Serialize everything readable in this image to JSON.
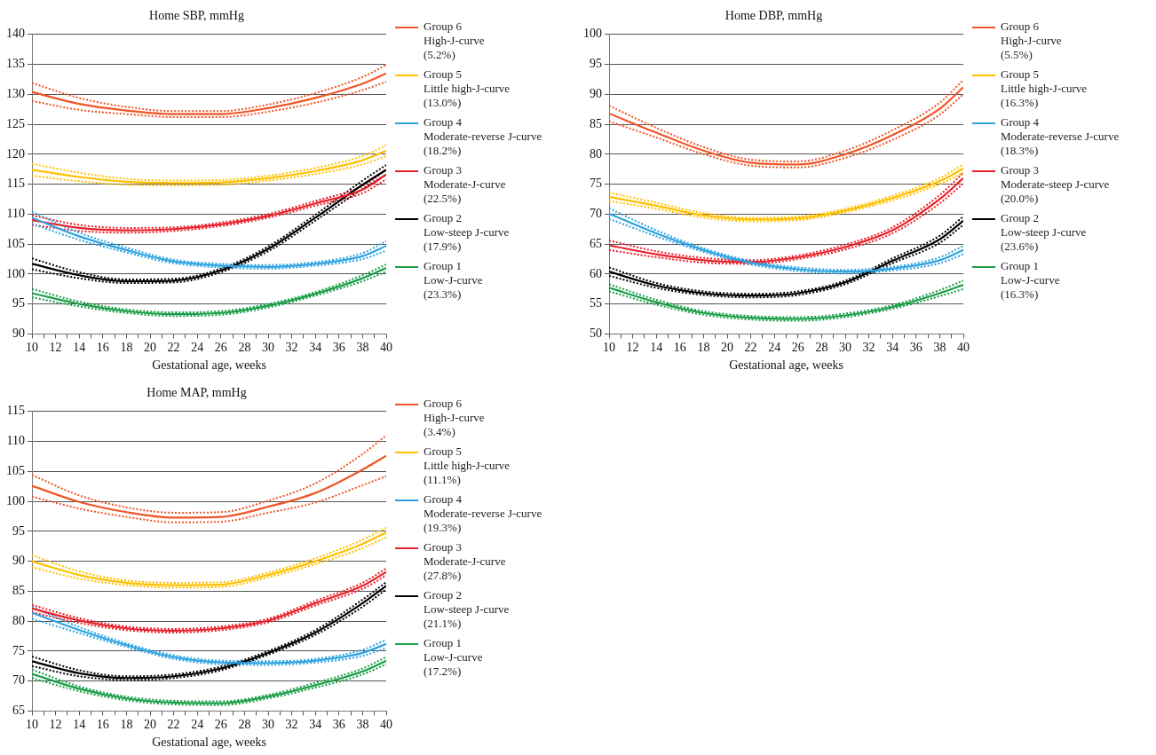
{
  "chart_data": [
    {
      "type": "line",
      "title": "Home SBP, mmHg",
      "xlabel": "Gestational age, weeks",
      "x": [
        10,
        14,
        18,
        22,
        26,
        30,
        34,
        38,
        40
      ],
      "xlim": [
        10,
        40
      ],
      "xticks": [
        10,
        {
          "value": 11,
          "label": null
        },
        12,
        {
          "value": 13,
          "label": null
        },
        14,
        {
          "value": 15,
          "label": null
        },
        16,
        {
          "value": 17,
          "label": null
        },
        18,
        {
          "value": 19,
          "label": null
        },
        20,
        {
          "value": 21,
          "label": null
        },
        22,
        {
          "value": 23,
          "label": null
        },
        24,
        {
          "value": 25,
          "label": null
        },
        26,
        {
          "value": 27,
          "label": null
        },
        28,
        {
          "value": 29,
          "label": null
        },
        30,
        {
          "value": 31,
          "label": null
        },
        32,
        {
          "value": 33,
          "label": null
        },
        34,
        {
          "value": 35,
          "label": null
        },
        36,
        {
          "value": 37,
          "label": null
        },
        38,
        {
          "value": 39,
          "label": null
        },
        40
      ],
      "ylim": [
        90,
        140
      ],
      "yticks": [
        90,
        95,
        100,
        105,
        110,
        115,
        120,
        125,
        130,
        135,
        140
      ],
      "grid": "y",
      "legend": "right",
      "line_style": "solid",
      "series": [
        {
          "name": "Group 6\nHigh-J-curve\n(5.2%)",
          "color": "#ef5527",
          "values": [
            130.4,
            128.4,
            127.3,
            126.7,
            126.7,
            127.7,
            129.4,
            131.8,
            133.5
          ]
        },
        {
          "name": "Group 5\nLittle high-J-curve\n(13.0%)",
          "color": "#ffc000",
          "values": [
            117.4,
            116.2,
            115.4,
            115.2,
            115.3,
            116.0,
            117.2,
            119.0,
            120.6
          ]
        },
        {
          "name": "Group 4\nModerate-reverse J-curve\n(18.2%)",
          "color": "#2fa3e0",
          "values": [
            109.4,
            106.3,
            104.0,
            102.1,
            101.4,
            101.2,
            101.7,
            103.0,
            104.7
          ]
        },
        {
          "name": "Group 3\nModerate-J-curve\n(22.5%)",
          "color": "#e8202a",
          "values": [
            109.0,
            107.7,
            107.3,
            107.5,
            108.3,
            109.7,
            111.8,
            114.1,
            116.6
          ]
        },
        {
          "name": "Group 2\nLow-steep J-curve\n(17.9%)",
          "color": "#000000",
          "values": [
            101.7,
            99.8,
            98.8,
            98.9,
            100.6,
            104.2,
            109.4,
            114.9,
            117.4
          ]
        },
        {
          "name": "Group 1\nLow-J-curve\n(23.3%)",
          "color": "#1a9e47",
          "values": [
            96.8,
            95.0,
            93.8,
            93.3,
            93.5,
            94.7,
            96.7,
            99.3,
            101.0
          ]
        },
        {
          "color": "#ef5527",
          "line_style": "dotted",
          "values": [
            131.9,
            129.4,
            127.9,
            127.2,
            127.2,
            128.3,
            130.2,
            132.9,
            134.9
          ]
        },
        {
          "color": "#ef5527",
          "line_style": "dotted",
          "values": [
            128.9,
            127.4,
            126.7,
            126.2,
            126.2,
            127.1,
            128.6,
            130.7,
            132.1
          ]
        },
        {
          "color": "#ffc000",
          "line_style": "dotted",
          "values": [
            118.4,
            116.9,
            115.9,
            115.6,
            115.7,
            116.4,
            117.7,
            119.7,
            121.5
          ]
        },
        {
          "color": "#ffc000",
          "line_style": "dotted",
          "values": [
            116.4,
            115.5,
            114.9,
            114.8,
            114.9,
            115.6,
            116.7,
            118.3,
            119.7
          ]
        },
        {
          "color": "#2fa3e0",
          "line_style": "dotted",
          "values": [
            110.4,
            106.9,
            104.4,
            102.4,
            101.7,
            101.5,
            102.0,
            103.5,
            105.5
          ]
        },
        {
          "color": "#2fa3e0",
          "line_style": "dotted",
          "values": [
            108.4,
            105.7,
            103.6,
            101.8,
            101.1,
            100.9,
            101.4,
            102.5,
            103.9
          ]
        },
        {
          "color": "#e8202a",
          "line_style": "dotted",
          "values": [
            109.8,
            108.2,
            107.7,
            107.8,
            108.6,
            110.0,
            112.2,
            114.7,
            117.4
          ]
        },
        {
          "color": "#e8202a",
          "line_style": "dotted",
          "values": [
            108.2,
            107.2,
            106.9,
            107.2,
            108.0,
            109.4,
            111.4,
            113.5,
            115.8
          ]
        },
        {
          "color": "#000000",
          "line_style": "dotted",
          "values": [
            102.6,
            100.3,
            99.1,
            99.2,
            100.9,
            104.6,
            109.9,
            115.6,
            118.2
          ]
        },
        {
          "color": "#000000",
          "line_style": "dotted",
          "values": [
            100.8,
            99.3,
            98.5,
            98.6,
            100.3,
            103.8,
            108.9,
            114.2,
            116.6
          ]
        },
        {
          "color": "#1a9e47",
          "line_style": "dotted",
          "values": [
            97.5,
            95.4,
            94.1,
            93.6,
            93.8,
            95.0,
            97.0,
            99.8,
            101.6
          ]
        },
        {
          "color": "#1a9e47",
          "line_style": "dotted",
          "values": [
            96.1,
            94.6,
            93.5,
            93.0,
            93.2,
            94.4,
            96.4,
            98.8,
            100.4
          ]
        }
      ]
    },
    {
      "type": "line",
      "title": "Home DBP, mmHg",
      "xlabel": "Gestational age, weeks",
      "x": [
        10,
        14,
        18,
        22,
        26,
        30,
        34,
        38,
        40
      ],
      "xlim": [
        10,
        40
      ],
      "xticks": [
        10,
        {
          "value": 11,
          "label": null
        },
        12,
        {
          "value": 13,
          "label": null
        },
        14,
        {
          "value": 15,
          "label": null
        },
        16,
        {
          "value": 17,
          "label": null
        },
        18,
        {
          "value": 19,
          "label": null
        },
        20,
        {
          "value": 21,
          "label": null
        },
        22,
        {
          "value": 23,
          "label": null
        },
        24,
        {
          "value": 25,
          "label": null
        },
        26,
        {
          "value": 27,
          "label": null
        },
        28,
        {
          "value": 29,
          "label": null
        },
        30,
        {
          "value": 31,
          "label": null
        },
        32,
        {
          "value": 33,
          "label": null
        },
        34,
        {
          "value": 35,
          "label": null
        },
        36,
        {
          "value": 37,
          "label": null
        },
        38,
        {
          "value": 39,
          "label": null
        },
        40
      ],
      "ylim": [
        50,
        100
      ],
      "yticks": [
        50,
        55,
        60,
        65,
        70,
        75,
        80,
        85,
        90,
        95,
        100
      ],
      "grid": "y",
      "legend": "right",
      "line_style": "solid",
      "series": [
        {
          "name": "Group 6\nHigh-J-curve\n(5.5%)",
          "color": "#ef5527",
          "values": [
            86.8,
            83.6,
            80.6,
            78.6,
            78.3,
            80.0,
            83.2,
            87.6,
            91.2
          ]
        },
        {
          "name": "Group 5\nLittle high-J-curve\n(16.3%)",
          "color": "#ffc000",
          "values": [
            72.9,
            71.4,
            69.8,
            69.1,
            69.3,
            70.6,
            72.7,
            75.5,
            77.6
          ]
        },
        {
          "name": "Group 4\nModerate-reverse J-curve\n(18.3%)",
          "color": "#2fa3e0",
          "values": [
            70.1,
            66.8,
            64.0,
            61.9,
            60.8,
            60.4,
            60.9,
            62.3,
            64.0
          ]
        },
        {
          "name": "Group 3\nModerate-steep J-curve\n(20.0%)",
          "color": "#e8202a",
          "values": [
            64.8,
            63.3,
            62.3,
            62.0,
            62.8,
            64.5,
            67.3,
            72.5,
            76.0
          ]
        },
        {
          "name": "Group 2\nLow-steep J-curve\n(23.6%)",
          "color": "#000000",
          "values": [
            60.4,
            58.1,
            56.8,
            56.4,
            56.8,
            58.6,
            62.2,
            65.8,
            68.9
          ]
        },
        {
          "name": "Group 1\nLow-J-curve\n(16.3%)",
          "color": "#1a9e47",
          "values": [
            57.7,
            55.3,
            53.5,
            52.7,
            52.5,
            53.1,
            54.5,
            56.8,
            58.2
          ]
        },
        {
          "color": "#ef5527",
          "line_style": "dotted",
          "values": [
            88.1,
            84.4,
            81.2,
            79.1,
            78.8,
            80.6,
            84.0,
            88.6,
            92.4
          ]
        },
        {
          "color": "#ef5527",
          "line_style": "dotted",
          "values": [
            85.5,
            82.8,
            80.0,
            78.1,
            77.8,
            79.4,
            82.4,
            86.6,
            90.0
          ]
        },
        {
          "color": "#ffc000",
          "line_style": "dotted",
          "values": [
            73.6,
            71.9,
            70.2,
            69.4,
            69.6,
            70.9,
            73.1,
            76.0,
            78.3
          ]
        },
        {
          "color": "#ffc000",
          "line_style": "dotted",
          "values": [
            72.2,
            70.9,
            69.4,
            68.8,
            69.0,
            70.3,
            72.3,
            75.0,
            76.9
          ]
        },
        {
          "color": "#2fa3e0",
          "line_style": "dotted",
          "values": [
            71.0,
            67.3,
            64.3,
            62.2,
            61.1,
            60.7,
            61.2,
            62.8,
            64.7
          ]
        },
        {
          "color": "#2fa3e0",
          "line_style": "dotted",
          "values": [
            69.2,
            66.3,
            63.7,
            61.6,
            60.5,
            60.1,
            60.6,
            61.8,
            63.3
          ]
        },
        {
          "color": "#e8202a",
          "line_style": "dotted",
          "values": [
            65.6,
            63.8,
            62.7,
            62.3,
            63.1,
            64.9,
            67.8,
            73.2,
            76.9
          ]
        },
        {
          "color": "#e8202a",
          "line_style": "dotted",
          "values": [
            64.0,
            62.8,
            61.9,
            61.7,
            62.5,
            64.1,
            66.8,
            71.8,
            75.1
          ]
        },
        {
          "color": "#000000",
          "line_style": "dotted",
          "values": [
            61.1,
            58.5,
            57.1,
            56.7,
            57.1,
            58.9,
            62.6,
            66.4,
            69.6
          ]
        },
        {
          "color": "#000000",
          "line_style": "dotted",
          "values": [
            59.7,
            57.7,
            56.5,
            56.1,
            56.5,
            58.3,
            61.8,
            65.2,
            68.2
          ]
        },
        {
          "color": "#1a9e47",
          "line_style": "dotted",
          "values": [
            58.3,
            55.7,
            53.8,
            53.0,
            52.8,
            53.4,
            54.8,
            57.3,
            58.9
          ]
        },
        {
          "color": "#1a9e47",
          "line_style": "dotted",
          "values": [
            57.1,
            54.9,
            53.2,
            52.4,
            52.2,
            52.8,
            54.2,
            56.3,
            57.5
          ]
        }
      ]
    },
    {
      "type": "line",
      "title": "Home MAP, mmHg",
      "xlabel": "Gestational age, weeks",
      "x": [
        10,
        14,
        18,
        22,
        26,
        30,
        34,
        38,
        40
      ],
      "xlim": [
        10,
        40
      ],
      "xticks": [
        10,
        {
          "value": 11,
          "label": null
        },
        12,
        {
          "value": 13,
          "label": null
        },
        14,
        {
          "value": 15,
          "label": null
        },
        16,
        {
          "value": 17,
          "label": null
        },
        18,
        {
          "value": 19,
          "label": null
        },
        20,
        {
          "value": 21,
          "label": null
        },
        22,
        {
          "value": 23,
          "label": null
        },
        24,
        {
          "value": 25,
          "label": null
        },
        26,
        {
          "value": 27,
          "label": null
        },
        28,
        {
          "value": 29,
          "label": null
        },
        30,
        {
          "value": 31,
          "label": null
        },
        32,
        {
          "value": 33,
          "label": null
        },
        34,
        {
          "value": 35,
          "label": null
        },
        36,
        {
          "value": 37,
          "label": null
        },
        38,
        {
          "value": 39,
          "label": null
        },
        40
      ],
      "ylim": [
        65,
        115
      ],
      "yticks": [
        65,
        70,
        75,
        80,
        85,
        90,
        95,
        100,
        105,
        110,
        115
      ],
      "grid": "y",
      "legend": "right",
      "line_style": "solid",
      "series": [
        {
          "name": "Group 6\nHigh-J-curve\n(3.4%)",
          "color": "#ef5527",
          "values": [
            102.6,
            99.9,
            98.2,
            97.3,
            97.4,
            99.1,
            101.4,
            105.3,
            107.6
          ]
        },
        {
          "name": "Group 5\nLittle high-J-curve\n(11.1%)",
          "color": "#ffc000",
          "values": [
            90.0,
            87.7,
            86.4,
            86.0,
            86.1,
            87.7,
            90.0,
            92.9,
            94.8
          ]
        },
        {
          "name": "Group 4\nModerate-reverse J-curve\n(19.3%)",
          "color": "#2fa3e0",
          "values": [
            81.4,
            78.5,
            76.0,
            74.0,
            73.1,
            73.0,
            73.4,
            74.7,
            76.2
          ]
        },
        {
          "name": "Group 3\nModerate-J-curve\n(27.8%)",
          "color": "#e8202a",
          "values": [
            82.1,
            80.1,
            78.8,
            78.4,
            78.8,
            80.1,
            83.0,
            85.9,
            88.2
          ]
        },
        {
          "name": "Group 2\nLow-steep J-curve\n(21.1%)",
          "color": "#000000",
          "values": [
            73.3,
            71.3,
            70.5,
            70.8,
            72.1,
            74.7,
            78.1,
            83.0,
            85.9
          ]
        },
        {
          "name": "Group 1\nLow-J-curve\n(17.2%)",
          "color": "#1a9e47",
          "values": [
            71.2,
            68.7,
            67.1,
            66.4,
            66.3,
            67.4,
            69.3,
            71.6,
            73.4
          ]
        },
        {
          "color": "#ef5527",
          "line_style": "dotted",
          "values": [
            104.4,
            101.0,
            99.0,
            98.1,
            98.2,
            100.1,
            103.0,
            107.9,
            111.0
          ]
        },
        {
          "color": "#ef5527",
          "line_style": "dotted",
          "values": [
            100.8,
            98.8,
            97.4,
            96.5,
            96.6,
            98.1,
            99.8,
            102.7,
            104.2
          ]
        },
        {
          "color": "#ffc000",
          "line_style": "dotted",
          "values": [
            91.0,
            88.3,
            86.8,
            86.4,
            86.5,
            88.1,
            90.5,
            93.6,
            95.6
          ]
        },
        {
          "color": "#ffc000",
          "line_style": "dotted",
          "values": [
            89.0,
            87.1,
            86.0,
            85.6,
            85.7,
            87.3,
            89.5,
            92.2,
            94.0
          ]
        },
        {
          "color": "#2fa3e0",
          "line_style": "dotted",
          "values": [
            82.4,
            79.0,
            76.3,
            74.3,
            73.4,
            73.3,
            73.7,
            75.2,
            76.9
          ]
        },
        {
          "color": "#2fa3e0",
          "line_style": "dotted",
          "values": [
            80.4,
            78.0,
            75.7,
            73.7,
            72.8,
            72.7,
            73.1,
            74.2,
            75.5
          ]
        },
        {
          "color": "#e8202a",
          "line_style": "dotted",
          "values": [
            82.7,
            80.5,
            79.1,
            78.7,
            79.1,
            80.4,
            83.4,
            86.4,
            88.8
          ]
        },
        {
          "color": "#e8202a",
          "line_style": "dotted",
          "values": [
            81.5,
            79.7,
            78.5,
            78.1,
            78.5,
            79.8,
            82.6,
            85.4,
            87.6
          ]
        },
        {
          "color": "#000000",
          "line_style": "dotted",
          "values": [
            74.1,
            71.8,
            70.8,
            71.1,
            72.4,
            75.0,
            78.5,
            83.6,
            86.5
          ]
        },
        {
          "color": "#000000",
          "line_style": "dotted",
          "values": [
            72.5,
            70.8,
            70.2,
            70.5,
            71.8,
            74.4,
            77.7,
            82.4,
            85.3
          ]
        },
        {
          "color": "#1a9e47",
          "line_style": "dotted",
          "values": [
            71.9,
            69.1,
            67.4,
            66.7,
            66.6,
            67.7,
            69.7,
            72.1,
            74.0
          ]
        },
        {
          "color": "#1a9e47",
          "line_style": "dotted",
          "values": [
            70.5,
            68.3,
            66.8,
            66.1,
            66.0,
            67.1,
            68.9,
            71.1,
            72.8
          ]
        }
      ]
    }
  ]
}
